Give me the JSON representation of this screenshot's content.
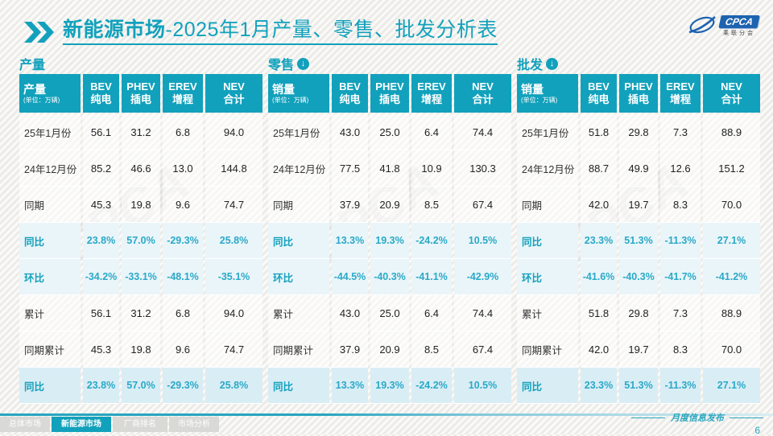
{
  "title": {
    "bold": "新能源市场",
    "rest": "-2025年1月产量、零售、批发分析表"
  },
  "logo": {
    "acronym": "CPCA",
    "subtitle": "乘联分会"
  },
  "watermark_text": "CPCA",
  "tables": [
    {
      "id": "production",
      "section": "产量",
      "has_arrow": false,
      "corner": {
        "label": "产量",
        "unit": "(单位：万辆)"
      },
      "columns": [
        {
          "en": "BEV",
          "cn": "纯电"
        },
        {
          "en": "PHEV",
          "cn": "插电"
        },
        {
          "en": "EREV",
          "cn": "增程"
        },
        {
          "en": "NEV",
          "cn": "合计"
        }
      ],
      "rows": [
        {
          "label": "25年1月份",
          "values": [
            "56.1",
            "31.2",
            "6.8",
            "94.0"
          ],
          "style": "normal"
        },
        {
          "label": "24年12月份",
          "values": [
            "85.2",
            "46.6",
            "13.0",
            "144.8"
          ],
          "style": "normal"
        },
        {
          "label": "同期",
          "values": [
            "45.3",
            "19.8",
            "9.6",
            "74.7"
          ],
          "style": "normal"
        },
        {
          "label": "同比",
          "values": [
            "23.8%",
            "57.0%",
            "-29.3%",
            "25.8%"
          ],
          "style": "pct"
        },
        {
          "label": "环比",
          "values": [
            "-34.2%",
            "-33.1%",
            "-48.1%",
            "-35.1%"
          ],
          "style": "pct"
        },
        {
          "label": "累计",
          "values": [
            "56.1",
            "31.2",
            "6.8",
            "94.0"
          ],
          "style": "normal"
        },
        {
          "label": "同期累计",
          "values": [
            "45.3",
            "19.8",
            "9.6",
            "74.7"
          ],
          "style": "normal"
        },
        {
          "label": "同比",
          "values": [
            "23.8%",
            "57.0%",
            "-29.3%",
            "25.8%"
          ],
          "style": "pct-hl"
        }
      ]
    },
    {
      "id": "retail",
      "section": "零售",
      "has_arrow": true,
      "corner": {
        "label": "销量",
        "unit": "(单位：万辆)"
      },
      "columns": [
        {
          "en": "BEV",
          "cn": "纯电"
        },
        {
          "en": "PHEV",
          "cn": "插电"
        },
        {
          "en": "EREV",
          "cn": "增程"
        },
        {
          "en": "NEV",
          "cn": "合计"
        }
      ],
      "rows": [
        {
          "label": "25年1月份",
          "values": [
            "43.0",
            "25.0",
            "6.4",
            "74.4"
          ],
          "style": "normal"
        },
        {
          "label": "24年12月份",
          "values": [
            "77.5",
            "41.8",
            "10.9",
            "130.3"
          ],
          "style": "normal"
        },
        {
          "label": "同期",
          "values": [
            "37.9",
            "20.9",
            "8.5",
            "67.4"
          ],
          "style": "normal"
        },
        {
          "label": "同比",
          "values": [
            "13.3%",
            "19.3%",
            "-24.2%",
            "10.5%"
          ],
          "style": "pct"
        },
        {
          "label": "环比",
          "values": [
            "-44.5%",
            "-40.3%",
            "-41.1%",
            "-42.9%"
          ],
          "style": "pct"
        },
        {
          "label": "累计",
          "values": [
            "43.0",
            "25.0",
            "6.4",
            "74.4"
          ],
          "style": "normal"
        },
        {
          "label": "同期累计",
          "values": [
            "37.9",
            "20.9",
            "8.5",
            "67.4"
          ],
          "style": "normal"
        },
        {
          "label": "同比",
          "values": [
            "13.3%",
            "19.3%",
            "-24.2%",
            "10.5%"
          ],
          "style": "pct-hl"
        }
      ]
    },
    {
      "id": "wholesale",
      "section": "批发",
      "has_arrow": true,
      "corner": {
        "label": "销量",
        "unit": "(单位：万辆)"
      },
      "columns": [
        {
          "en": "BEV",
          "cn": "纯电"
        },
        {
          "en": "PHEV",
          "cn": "插电"
        },
        {
          "en": "EREV",
          "cn": "增程"
        },
        {
          "en": "NEV",
          "cn": "合计"
        }
      ],
      "rows": [
        {
          "label": "25年1月份",
          "values": [
            "51.8",
            "29.8",
            "7.3",
            "88.9"
          ],
          "style": "normal"
        },
        {
          "label": "24年12月份",
          "values": [
            "88.7",
            "49.9",
            "12.6",
            "151.2"
          ],
          "style": "normal"
        },
        {
          "label": "同期",
          "values": [
            "42.0",
            "19.7",
            "8.3",
            "70.0"
          ],
          "style": "normal"
        },
        {
          "label": "同比",
          "values": [
            "23.3%",
            "51.3%",
            "-11.3%",
            "27.1%"
          ],
          "style": "pct"
        },
        {
          "label": "环比",
          "values": [
            "-41.6%",
            "-40.3%",
            "-41.7%",
            "-41.2%"
          ],
          "style": "pct"
        },
        {
          "label": "累计",
          "values": [
            "51.8",
            "29.8",
            "7.3",
            "88.9"
          ],
          "style": "normal"
        },
        {
          "label": "同期累计",
          "values": [
            "42.0",
            "19.7",
            "8.3",
            "70.0"
          ],
          "style": "normal"
        },
        {
          "label": "同比",
          "values": [
            "23.3%",
            "51.3%",
            "-11.3%",
            "27.1%"
          ],
          "style": "pct-hl"
        }
      ]
    }
  ],
  "footer": {
    "tabs": [
      {
        "label": "总体市场",
        "active": false
      },
      {
        "label": "新能源市场",
        "active": true
      },
      {
        "label": "厂商排名",
        "active": false
      },
      {
        "label": "市场分析",
        "active": false
      }
    ],
    "info_label": "月度信息发布",
    "page_number": "6"
  },
  "colors": {
    "teal": "#12a1bc",
    "percent_text": "#2aa9c7",
    "logo_blue": "#1e63b0"
  }
}
